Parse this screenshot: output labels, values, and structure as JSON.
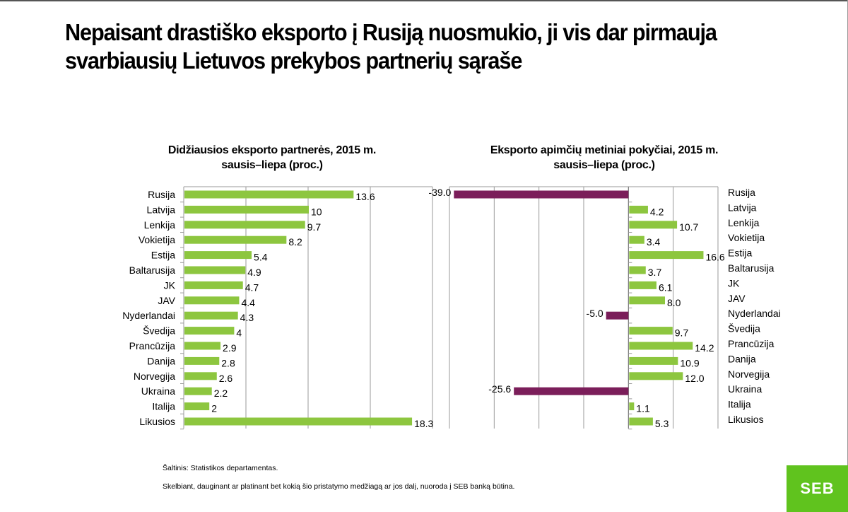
{
  "title": "Nepaisant drastiško eksporto į Rusiją nuosmukio, ji  vis dar pirmauja svarbiausių Lietuvos prekybos partnerių sąraše",
  "colors": {
    "green": "#8dc63f",
    "purple": "#7b1e5a",
    "grid": "#9a9a9a",
    "logo": "#60c31e"
  },
  "chart_data": [
    {
      "type": "bar",
      "orientation": "horizontal",
      "title": "Didžiausios eksporto partnerės, 2015 m. sausis–liepa (proc.)",
      "title_line1": "Didžiausios eksporto partnerės, 2015 m.",
      "title_line2": "sausis–liepa (proc.)",
      "categories": [
        "Rusija",
        "Latvija",
        "Lenkija",
        "Vokietija",
        "Estija",
        "Baltarusija",
        "JK",
        "JAV",
        "Nyderlandai",
        "Švedija",
        "Prancūzija",
        "Danija",
        "Norvegija",
        "Ukraina",
        "Italija",
        "Likusios"
      ],
      "values": [
        13.6,
        10,
        9.7,
        8.2,
        5.4,
        4.9,
        4.7,
        4.4,
        4.3,
        4,
        2.9,
        2.8,
        2.6,
        2.2,
        2,
        18.3
      ],
      "value_labels": [
        "13.6",
        "10",
        "9.7",
        "8.2",
        "5.4",
        "4.9",
        "4.7",
        "4.4",
        "4.3",
        "4",
        "2.9",
        "2.8",
        "2.6",
        "2.2",
        "2",
        "18.3"
      ],
      "xlim": [
        0,
        20
      ],
      "grid": true,
      "color": "#8dc63f"
    },
    {
      "type": "bar",
      "orientation": "horizontal",
      "title": "Eksporto apimčių metiniai pokyčiai, 2015 m. sausis–liepa (proc.)",
      "title_line1": "Eksporto apimčių metiniai pokyčiai, 2015 m.",
      "title_line2": "sausis–liepa (proc.)",
      "categories": [
        "Rusija",
        "Latvija",
        "Lenkija",
        "Vokietija",
        "Estija",
        "Baltarusija",
        "JK",
        "JAV",
        "Nyderlandai",
        "Švedija",
        "Prancūzija",
        "Danija",
        "Norvegija",
        "Ukraina",
        "Italija",
        "Likusios"
      ],
      "values": [
        -39.0,
        4.2,
        10.7,
        3.4,
        16.6,
        3.7,
        6.1,
        8.0,
        -5.0,
        9.7,
        14.2,
        10.9,
        12.0,
        -25.6,
        1.1,
        5.3
      ],
      "value_labels": [
        "-39.0",
        "4.2",
        "10.7",
        "3.4",
        "16.6",
        "3.7",
        "6.1",
        "8.0",
        "-5.0",
        "9.7",
        "14.2",
        "10.9",
        "12.0",
        "-25.6",
        "1.1",
        "5.3"
      ],
      "xlim": [
        -40,
        20
      ],
      "grid": true,
      "positive_color": "#8dc63f",
      "negative_color": "#7b1e5a"
    }
  ],
  "footnotes": {
    "source": "Šaltinis: Statistikos departamentas.",
    "notice": "Skelbiant, dauginant ar platinant bet kokią šio pristatymo medžiagą ar jos dalį, nuoroda į SEB banką būtina."
  },
  "logo": {
    "text": "SEB"
  }
}
